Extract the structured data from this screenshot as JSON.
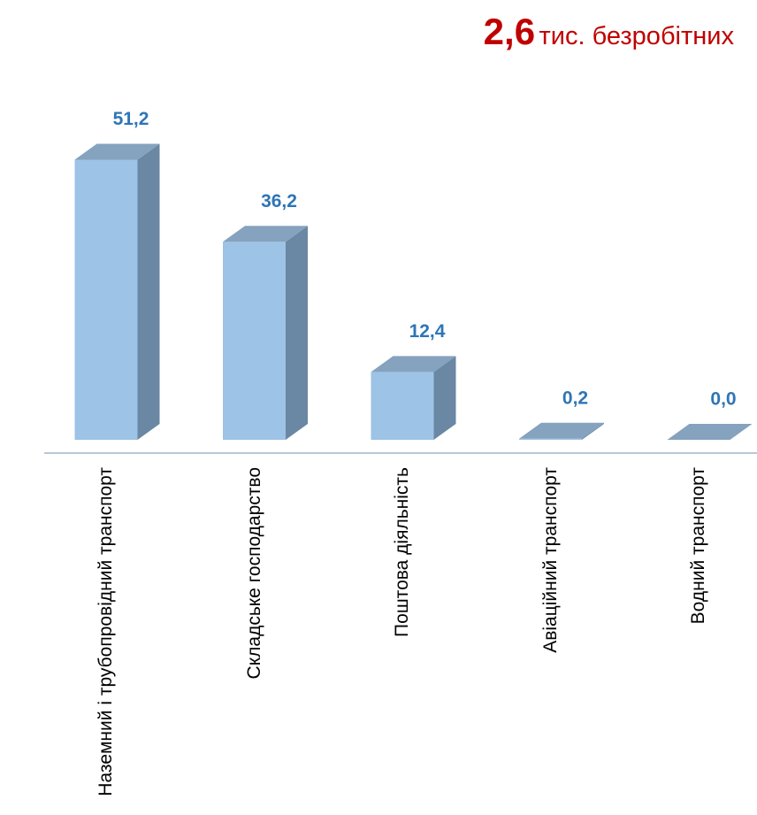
{
  "chart_data": {
    "type": "bar3d",
    "title_number": "2,6",
    "title": "тис. безробітних",
    "categories": [
      "Наземний і трубопровідний транспорт",
      "Складське господарство",
      "Поштова діяльність",
      "Авіаційний транспорт",
      "Водний транспорт"
    ],
    "values": [
      51.2,
      36.2,
      12.4,
      0.2,
      0.0
    ],
    "value_labels": [
      "51,2",
      "36,2",
      "12,4",
      "0,2",
      "0,0"
    ],
    "color": "#9dc3e6",
    "ylim": [
      0,
      55
    ],
    "grid": false
  }
}
